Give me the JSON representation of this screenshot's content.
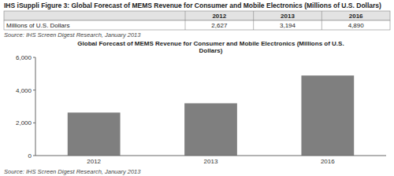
{
  "title": "IHS iSuppli Figure 3: Global Forecast of MEMS Revenue for Consumer and Mobile Electronics (Millions of U.S. Dollars)",
  "source": "Source:  IHS Screen Digest  Research, January 2013",
  "table": {
    "row_label": "Millions of U.S. Dollars",
    "value_labels": [
      "2,627",
      "3,194",
      "4,890"
    ]
  },
  "chart_data": {
    "type": "bar",
    "title": "Global Forecast of MEMS Revenue for Consumer and Mobile Electronics (Millions of U.S.\nDollars)",
    "categories": [
      "2012",
      "2013",
      "2016"
    ],
    "values": [
      2627,
      3194,
      4890
    ],
    "color": "#7f7f7f",
    "ylim": [
      0,
      6000
    ],
    "yticks": [
      0,
      {
        "value": 2000,
        "label": "2,000"
      },
      {
        "value": 4000,
        "label": "4,000"
      },
      {
        "value": 6000,
        "label": "6,000"
      }
    ],
    "grid": false
  }
}
